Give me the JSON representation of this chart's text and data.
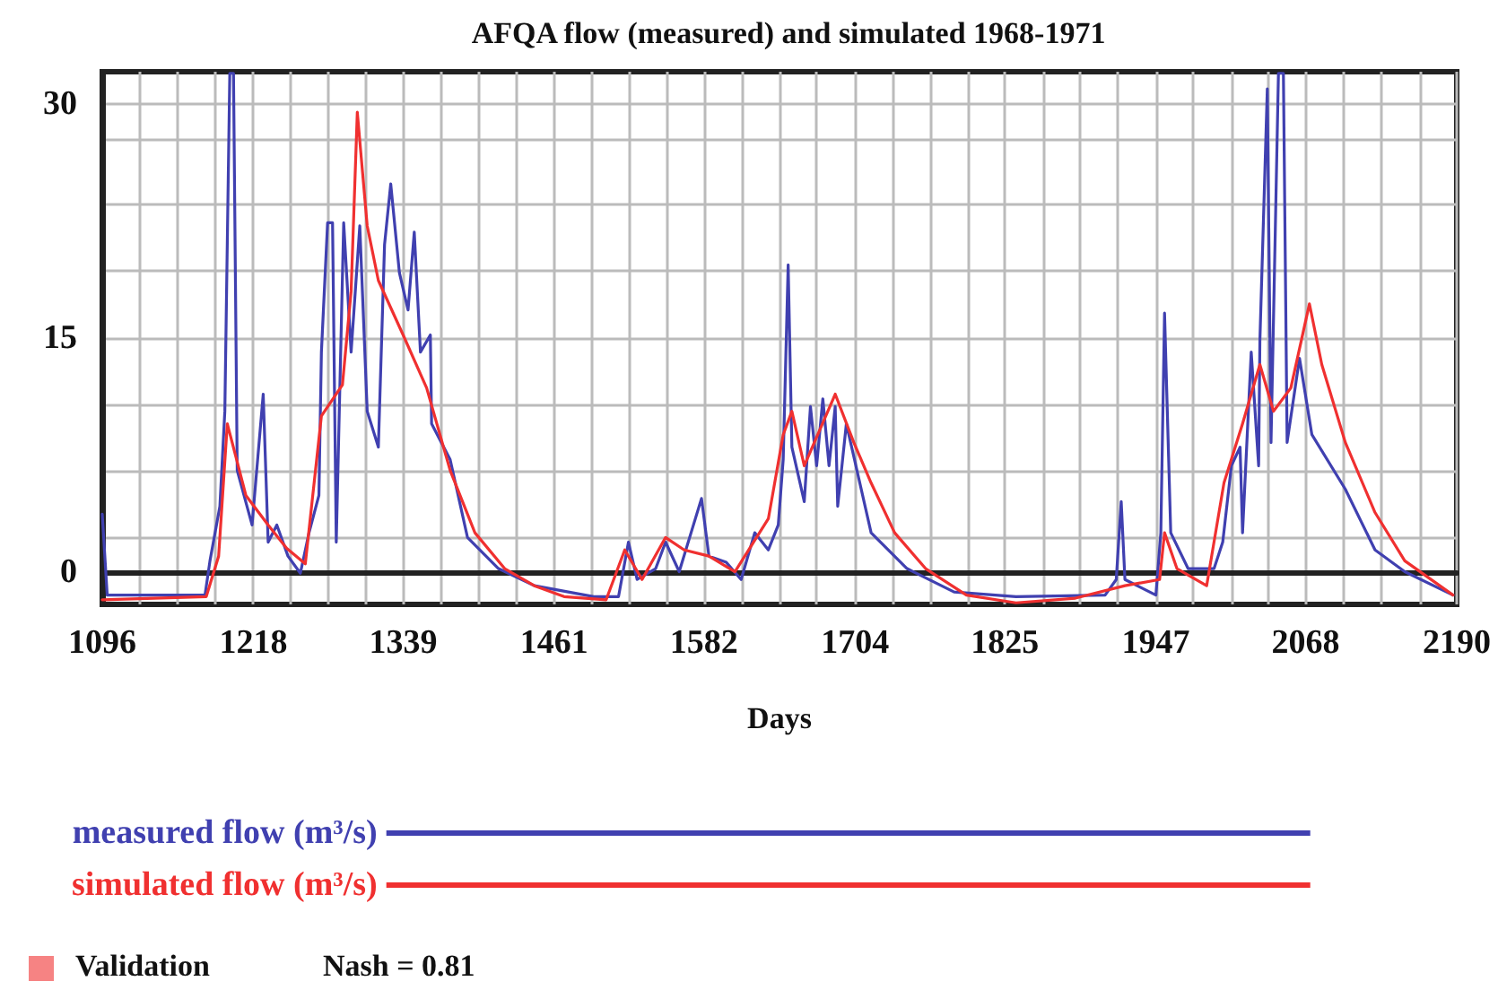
{
  "chart_data": {
    "type": "line",
    "title": "AFQA flow (measured) and simulated 1968-1971",
    "xlabel": "Days",
    "xlim": [
      1096,
      2190
    ],
    "ylim": [
      -2.1,
      32.1
    ],
    "xticks": [
      1096,
      {
        "value": 1126,
        "label": null
      },
      {
        "value": 1157,
        "label": null
      },
      {
        "value": 1187,
        "label": null
      },
      1218,
      {
        "value": 1248,
        "label": null
      },
      {
        "value": 1278,
        "label": null
      },
      {
        "value": 1309,
        "label": null
      },
      1339,
      {
        "value": 1370,
        "label": null
      },
      {
        "value": 1400,
        "label": null
      },
      {
        "value": 1430,
        "label": null
      },
      1461,
      {
        "value": 1491,
        "label": null
      },
      {
        "value": 1522,
        "label": null
      },
      {
        "value": 1552,
        "label": null
      },
      1582,
      {
        "value": 1613,
        "label": null
      },
      {
        "value": 1643,
        "label": null
      },
      {
        "value": 1673,
        "label": null
      },
      1704,
      {
        "value": 1734,
        "label": null
      },
      {
        "value": 1765,
        "label": null
      },
      {
        "value": 1795,
        "label": null
      },
      1825,
      {
        "value": 1856,
        "label": null
      },
      {
        "value": 1886,
        "label": null
      },
      {
        "value": 1916,
        "label": null
      },
      1947,
      {
        "value": 1977,
        "label": null
      },
      {
        "value": 2008,
        "label": null
      },
      {
        "value": 2038,
        "label": null
      },
      2068,
      {
        "value": 2099,
        "label": null
      },
      {
        "value": 2129,
        "label": null
      },
      {
        "value": 2160,
        "label": null
      },
      2190
    ],
    "yticks": [
      0,
      {
        "value": 2.2,
        "label": null
      },
      {
        "value": 6.4,
        "label": null
      },
      {
        "value": 10.7,
        "label": null
      },
      15,
      {
        "value": 19.3,
        "label": null
      },
      {
        "value": 23.6,
        "label": null
      },
      {
        "value": 27.8,
        "label": null
      },
      30
    ],
    "grid": true,
    "legend": "bottom",
    "line_style": "solid",
    "series": [
      {
        "name": "measured flow (m³/s)",
        "color": "#4040b0",
        "x": [
          1096,
          1100,
          1179,
          1183,
          1191,
          1195,
          1199,
          1202,
          1205,
          1217,
          1226,
          1230,
          1237,
          1246,
          1256,
          1263,
          1271,
          1273,
          1278,
          1282,
          1285,
          1291,
          1297,
          1304,
          1310,
          1319,
          1324,
          1329,
          1336,
          1343,
          1348,
          1353,
          1361,
          1362,
          1377,
          1391,
          1416,
          1445,
          1493,
          1513,
          1521,
          1528,
          1543,
          1551,
          1562,
          1580,
          1586,
          1600,
          1612,
          1623,
          1634,
          1642,
          1646,
          1650,
          1653,
          1663,
          1668,
          1673,
          1678,
          1683,
          1688,
          1690,
          1697,
          1717,
          1746,
          1784,
          1834,
          1906,
          1915,
          1919,
          1922,
          1947,
          1951,
          1954,
          1959,
          1973,
          1994,
          2001,
          2008,
          2015,
          2017,
          2024,
          2030,
          2031,
          2037,
          2040,
          2046,
          2050,
          2053,
          2063,
          2073,
          2100,
          2124,
          2148,
          2187
        ],
        "values": [
          3.7,
          -1.5,
          -1.5,
          0.7,
          4.2,
          10.3,
          32,
          32,
          6.5,
          3.0,
          11.4,
          1.9,
          3.0,
          1.0,
          -0.1,
          2.5,
          4.9,
          14.1,
          22.4,
          22.4,
          1.9,
          22.4,
          14.1,
          22.2,
          10.3,
          8.0,
          21.0,
          24.9,
          19.2,
          16.8,
          21.8,
          14.1,
          15.2,
          9.5,
          7.2,
          2.2,
          0.2,
          -0.9,
          -1.6,
          -1.6,
          1.9,
          -0.5,
          0.2,
          1.9,
          0.0,
          4.7,
          1.0,
          0.6,
          -0.5,
          2.5,
          1.4,
          3.0,
          7.2,
          19.7,
          8.0,
          4.5,
          10.6,
          6.8,
          11.1,
          6.8,
          10.6,
          4.2,
          9.5,
          2.5,
          0.2,
          -1.3,
          -1.6,
          -1.5,
          -0.5,
          4.5,
          -0.5,
          -1.5,
          2.5,
          16.6,
          2.5,
          0.2,
          0.2,
          1.9,
          6.8,
          8.0,
          2.5,
          14.1,
          6.8,
          14.8,
          31.0,
          8.3,
          32,
          32,
          8.3,
          13.7,
          8.8,
          5.3,
          1.4,
          0.0,
          -1.5
        ]
      },
      {
        "name": "simulated flow (m³/s)",
        "color": "#f03030",
        "x": [
          1096,
          1180,
          1190,
          1197,
          1212,
          1230,
          1245,
          1260,
          1273,
          1290,
          1297,
          1302,
          1310,
          1319,
          1339,
          1358,
          1377,
          1397,
          1421,
          1445,
          1469,
          1503,
          1518,
          1532,
          1551,
          1566,
          1586,
          1607,
          1634,
          1646,
          1653,
          1663,
          1688,
          1703,
          1717,
          1736,
          1761,
          1794,
          1834,
          1882,
          1922,
          1950,
          1954,
          1964,
          1988,
          2002,
          2017,
          2031,
          2042,
          2056,
          2071,
          2081,
          2100,
          2124,
          2148,
          2187
        ],
        "values": [
          -1.8,
          -1.6,
          1.0,
          9.5,
          4.9,
          3.0,
          1.5,
          0.5,
          10.0,
          12.0,
          18.0,
          29.5,
          22.2,
          18.7,
          15.2,
          11.8,
          6.5,
          2.5,
          0.2,
          -0.9,
          -1.6,
          -1.8,
          1.4,
          -0.5,
          2.2,
          1.4,
          1.0,
          0.0,
          3.4,
          8.8,
          10.3,
          6.8,
          11.4,
          8.3,
          5.7,
          2.5,
          0.2,
          -1.5,
          -2.0,
          -1.7,
          -0.9,
          -0.5,
          2.5,
          0.2,
          -0.9,
          5.7,
          9.5,
          13.3,
          10.3,
          11.8,
          17.2,
          13.3,
          8.3,
          3.8,
          0.7,
          -1.5
        ]
      }
    ],
    "annotations": [
      "Validation",
      "Nash = 0.81"
    ]
  }
}
